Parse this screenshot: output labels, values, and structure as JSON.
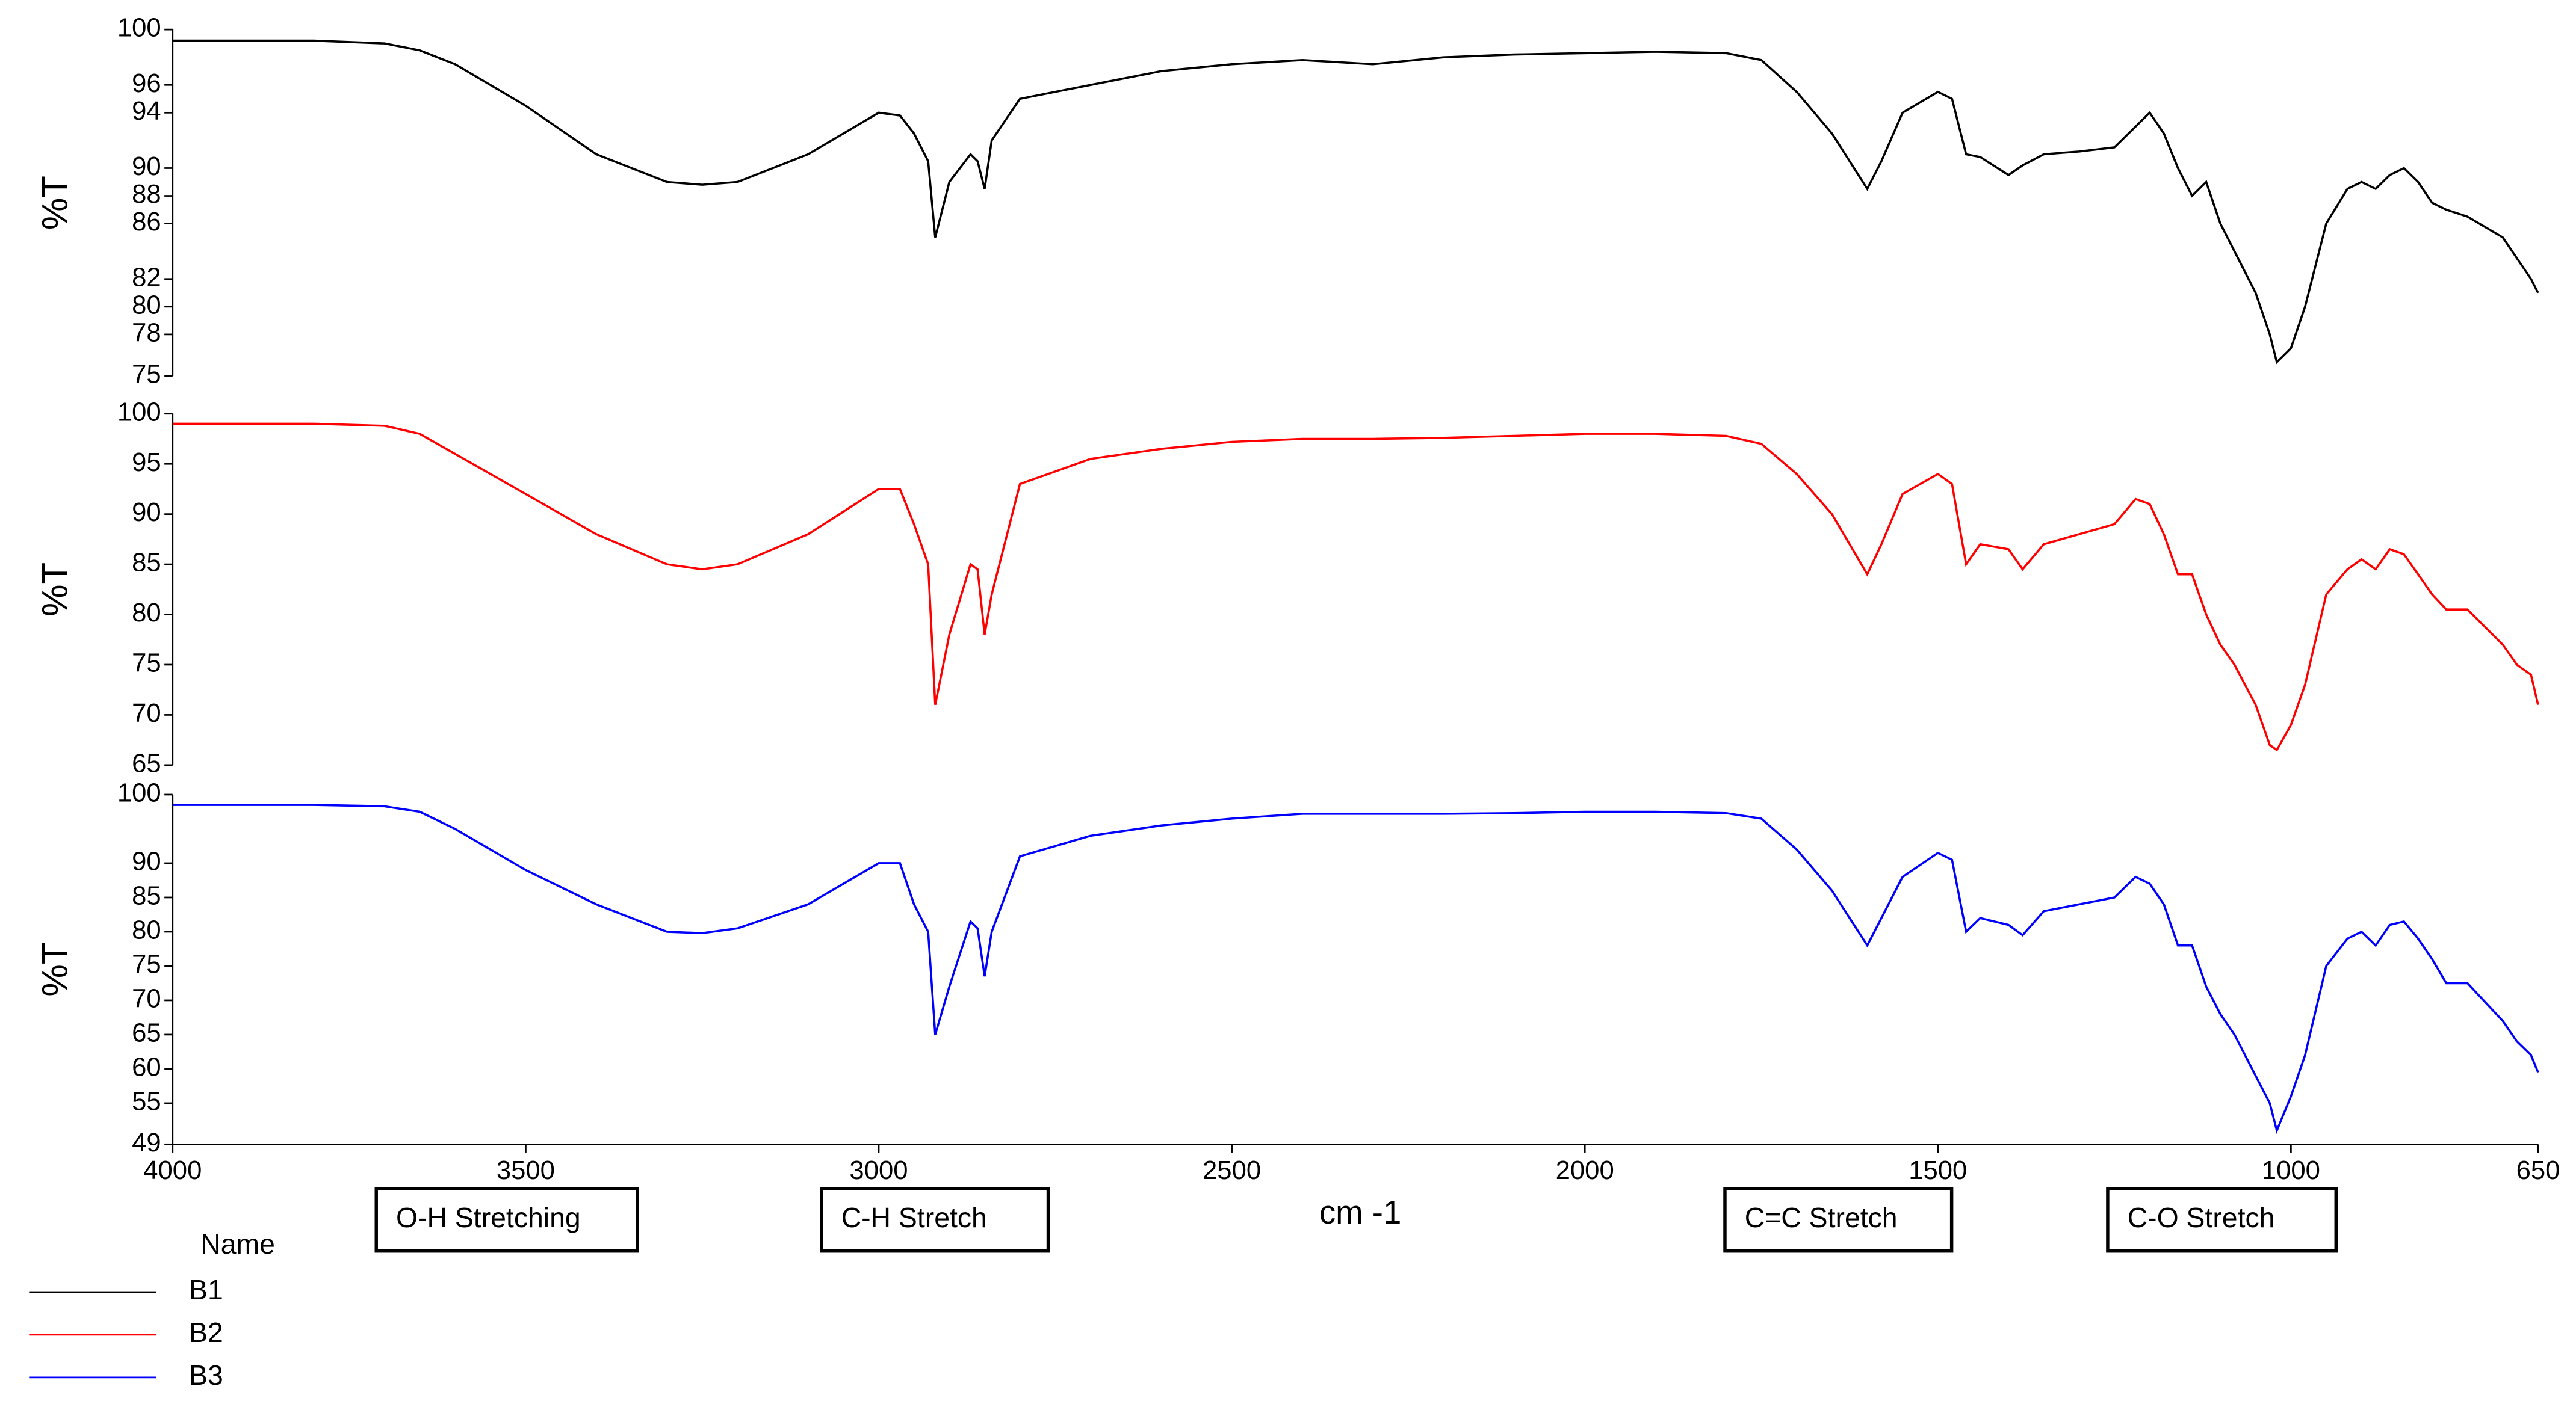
{
  "chart_data": [
    {
      "type": "line",
      "ylabel": "%T",
      "xlim": [
        4000,
        650
      ],
      "ylim": [
        75,
        100
      ],
      "yticks": [
        100,
        96,
        94,
        90,
        88,
        86,
        82,
        80,
        78,
        75
      ],
      "x": [
        4000,
        3800,
        3700,
        3650,
        3600,
        3500,
        3400,
        3300,
        3250,
        3200,
        3100,
        3000,
        2970,
        2950,
        2930,
        2920,
        2900,
        2870,
        2860,
        2850,
        2840,
        2800,
        2700,
        2600,
        2500,
        2400,
        2300,
        2200,
        2100,
        2000,
        1900,
        1800,
        1750,
        1700,
        1650,
        1600,
        1580,
        1550,
        1500,
        1480,
        1460,
        1440,
        1400,
        1380,
        1350,
        1300,
        1250,
        1220,
        1200,
        1180,
        1160,
        1140,
        1120,
        1100,
        1080,
        1050,
        1030,
        1020,
        1000,
        980,
        950,
        920,
        900,
        880,
        860,
        840,
        820,
        800,
        780,
        750,
        700,
        680,
        660,
        650
      ],
      "series": [
        {
          "name": "B1",
          "color": "#000000",
          "values": [
            99.2,
            99.2,
            99.0,
            98.5,
            97.5,
            94.5,
            91.0,
            89.0,
            88.8,
            89.0,
            91.0,
            94.0,
            93.8,
            92.5,
            90.5,
            85.0,
            89.0,
            91.0,
            90.5,
            88.5,
            92.0,
            95.0,
            96.0,
            97.0,
            97.5,
            97.8,
            97.5,
            98.0,
            98.2,
            98.3,
            98.4,
            98.3,
            97.8,
            95.5,
            92.5,
            88.5,
            90.5,
            94.0,
            95.5,
            95.0,
            91.0,
            90.8,
            89.5,
            90.2,
            91.0,
            91.2,
            91.5,
            93.0,
            94.0,
            92.5,
            90.0,
            88.0,
            89.0,
            86.0,
            84.0,
            81.0,
            78.0,
            76.0,
            77.0,
            80.0,
            86.0,
            88.5,
            89.0,
            88.5,
            89.5,
            90.0,
            89.0,
            87.5,
            87.0,
            86.5,
            85.0,
            83.5,
            82.0,
            81.0
          ]
        }
      ]
    },
    {
      "type": "line",
      "ylabel": "%T",
      "xlim": [
        4000,
        650
      ],
      "ylim": [
        65,
        100
      ],
      "yticks": [
        100,
        95,
        90,
        85,
        80,
        75,
        70,
        65
      ],
      "x": [
        4000,
        3800,
        3700,
        3650,
        3600,
        3500,
        3400,
        3300,
        3250,
        3200,
        3100,
        3000,
        2970,
        2950,
        2930,
        2920,
        2900,
        2870,
        2860,
        2850,
        2840,
        2800,
        2700,
        2600,
        2500,
        2400,
        2300,
        2200,
        2100,
        2000,
        1900,
        1800,
        1750,
        1700,
        1650,
        1600,
        1580,
        1550,
        1500,
        1480,
        1460,
        1440,
        1400,
        1380,
        1350,
        1300,
        1250,
        1220,
        1200,
        1180,
        1160,
        1140,
        1120,
        1100,
        1080,
        1050,
        1030,
        1020,
        1000,
        980,
        950,
        920,
        900,
        880,
        860,
        840,
        820,
        800,
        780,
        750,
        700,
        680,
        660,
        650
      ],
      "series": [
        {
          "name": "B2",
          "color": "#ff0000",
          "values": [
            99,
            99,
            98.8,
            98,
            96,
            92,
            88,
            85,
            84.5,
            85,
            88,
            92.5,
            92.5,
            89,
            85,
            71,
            78,
            85,
            84.5,
            78,
            82,
            93,
            95.5,
            96.5,
            97.2,
            97.5,
            97.5,
            97.6,
            97.8,
            98,
            98,
            97.8,
            97,
            94,
            90,
            84,
            87,
            92,
            94,
            93,
            85,
            87,
            86.5,
            84.5,
            87,
            88,
            89,
            91.5,
            91,
            88,
            84,
            84,
            80,
            77,
            75,
            71,
            67,
            66.5,
            69,
            73,
            82,
            84.5,
            85.5,
            84.5,
            86.5,
            86,
            84,
            82,
            80.5,
            80.5,
            77,
            75,
            74,
            71
          ]
        }
      ]
    },
    {
      "type": "line",
      "ylabel": "%T",
      "xlabel": "cm -1",
      "xlim": [
        4000,
        650
      ],
      "xticks": [
        4000,
        3500,
        3000,
        2500,
        2000,
        1500,
        1000,
        650
      ],
      "ylim": [
        49,
        100
      ],
      "yticks": [
        100,
        90,
        85,
        80,
        75,
        70,
        65,
        60,
        55,
        49
      ],
      "annotations": [
        "O-H Stretching",
        "C-H Stretch",
        "C=C Stretch",
        "C-O Stretch"
      ],
      "legend_title": "Name",
      "x": [
        4000,
        3800,
        3700,
        3650,
        3600,
        3500,
        3400,
        3300,
        3250,
        3200,
        3100,
        3000,
        2970,
        2950,
        2930,
        2920,
        2900,
        2870,
        2860,
        2850,
        2840,
        2800,
        2700,
        2600,
        2500,
        2400,
        2300,
        2200,
        2100,
        2000,
        1900,
        1800,
        1750,
        1700,
        1650,
        1600,
        1580,
        1550,
        1500,
        1480,
        1460,
        1440,
        1400,
        1380,
        1350,
        1300,
        1250,
        1220,
        1200,
        1180,
        1160,
        1140,
        1120,
        1100,
        1080,
        1050,
        1030,
        1020,
        1000,
        980,
        950,
        920,
        900,
        880,
        860,
        840,
        820,
        800,
        780,
        750,
        700,
        680,
        660,
        650
      ],
      "series": [
        {
          "name": "B3",
          "color": "#0000ff",
          "values": [
            98.5,
            98.5,
            98.3,
            97.5,
            95,
            89,
            84,
            80,
            79.8,
            80.5,
            84,
            90,
            90,
            84,
            80,
            65,
            72,
            81.5,
            80.5,
            73.5,
            80,
            91,
            94,
            95.5,
            96.5,
            97.2,
            97.2,
            97.2,
            97.3,
            97.5,
            97.5,
            97.3,
            96.5,
            92,
            86,
            78,
            82,
            88,
            91.5,
            90.5,
            80,
            82,
            81,
            79.5,
            83,
            84,
            85,
            88,
            87,
            84,
            78,
            78,
            72,
            68,
            65,
            59,
            55,
            51,
            56,
            62,
            75,
            79,
            80,
            78,
            81,
            81.5,
            79,
            76,
            72.5,
            72.5,
            67,
            64,
            62,
            59.5
          ]
        }
      ]
    }
  ]
}
